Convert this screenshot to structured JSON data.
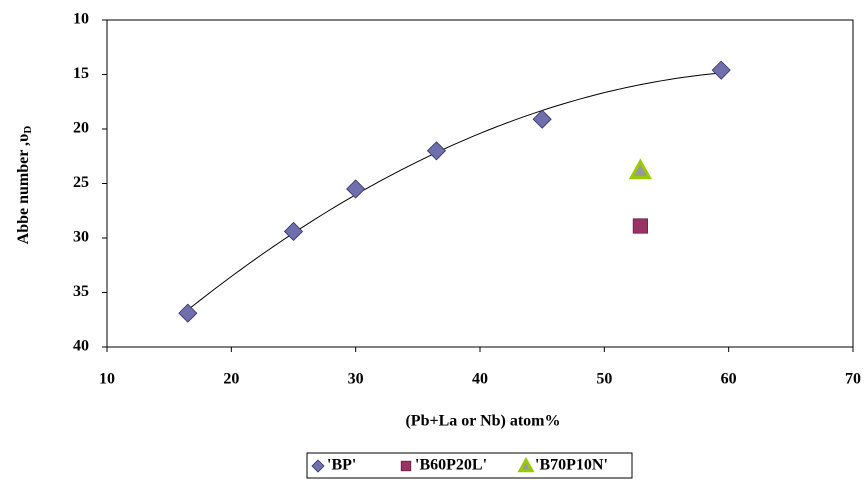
{
  "chart_data": {
    "type": "scatter",
    "xlabel": "(Pb+La or Nb) atom%",
    "ylabel": "Abbe number ,υ",
    "ylabel_subscript": "D",
    "xlim": [
      10,
      70
    ],
    "xticks": [
      10,
      20,
      30,
      40,
      50,
      60,
      70
    ],
    "ylim": [
      10,
      40
    ],
    "yticks": [
      10,
      15,
      20,
      25,
      30,
      35,
      40
    ],
    "y_inverted": true,
    "legend": "bottom",
    "series": [
      {
        "name": "'BP'",
        "color": "#6f6fae",
        "marker": "diamond",
        "trendline": "poly2",
        "x": [
          16.5,
          25,
          30,
          36.5,
          45,
          59.4
        ],
        "values": [
          36.9,
          29.4,
          25.5,
          22,
          19.1,
          14.6
        ]
      },
      {
        "name": "'B60P20L'",
        "color": "#993366",
        "marker": "square",
        "x": [
          52.9
        ],
        "values": [
          28.9
        ]
      },
      {
        "name": "'B70P10N'",
        "color": "#99cc00",
        "marker": "triangle",
        "x": [
          52.9
        ],
        "values": [
          23.8
        ]
      }
    ]
  }
}
